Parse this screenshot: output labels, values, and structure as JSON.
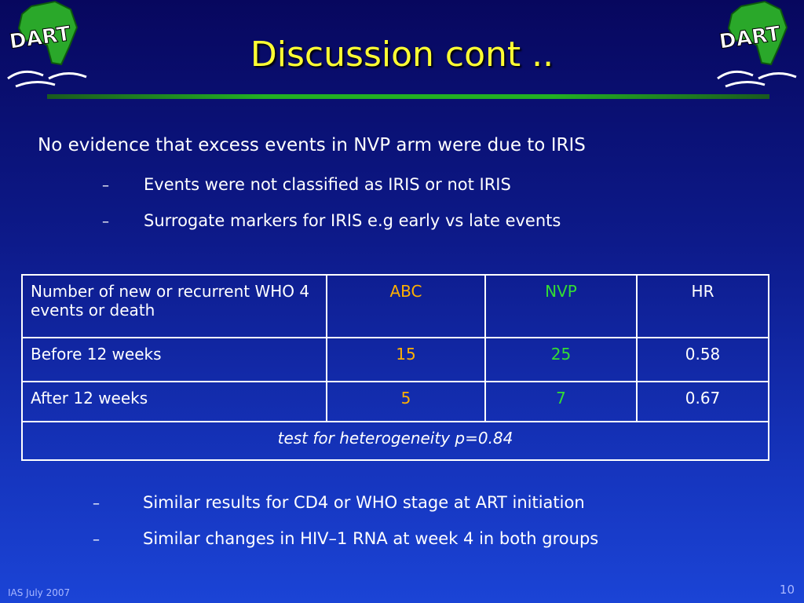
{
  "title": "Discussion cont ..",
  "logo_text": "DART",
  "bullet": "No evidence that excess events in NVP arm were due to IRIS",
  "sub_bullets": [
    "Events were not classified as IRIS or not IRIS",
    "Surrogate markers for IRIS e.g early vs late events"
  ],
  "table": {
    "header": [
      "Number of new or recurrent WHO 4 events or death",
      "ABC",
      "NVP",
      "HR"
    ],
    "rows": [
      [
        "Before 12 weeks",
        "15",
        "25",
        "0.58"
      ],
      [
        "After 12 weeks",
        "5",
        "7",
        "0.67"
      ]
    ],
    "footnote": "test for heterogeneity p=0.84"
  },
  "bottom_bullets": [
    "Similar results for CD4 or WHO stage at ART initiation",
    "Similar changes in HIV–1 RNA at week 4 in both groups"
  ],
  "footer": "IAS July 2007",
  "page_number": "10"
}
